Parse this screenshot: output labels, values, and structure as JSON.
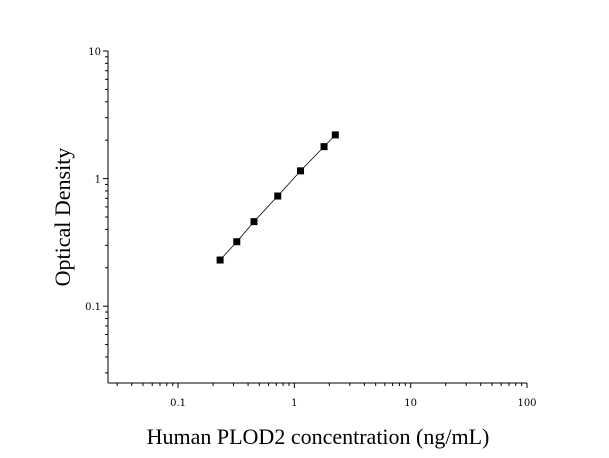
{
  "chart_data": {
    "type": "scatter",
    "title": "",
    "xlabel": "Human PLOD2 concentration (ng/mL)",
    "ylabel": "Optical Density",
    "xscale": "log",
    "yscale": "log",
    "xlim": [
      0.025,
      100
    ],
    "ylim": [
      0.025,
      10
    ],
    "x_ticks": [
      {
        "value": 0.1,
        "label": "0.1"
      },
      {
        "value": 1,
        "label": "1"
      },
      {
        "value": 10,
        "label": "10"
      },
      {
        "value": 100,
        "label": "100"
      }
    ],
    "y_ticks": [
      {
        "value": 0.1,
        "label": "0.1"
      },
      {
        "value": 1,
        "label": "1"
      },
      {
        "value": 10,
        "label": "10"
      }
    ],
    "grid": false,
    "legend": "none",
    "series": [
      {
        "points": [
          {
            "x": 0.23,
            "y": 0.23
          },
          {
            "x": 0.32,
            "y": 0.32
          },
          {
            "x": 0.45,
            "y": 0.46
          },
          {
            "x": 0.72,
            "y": 0.73
          },
          {
            "x": 1.13,
            "y": 1.15
          },
          {
            "x": 1.8,
            "y": 1.78
          },
          {
            "x": 2.25,
            "y": 2.2
          }
        ],
        "marker": "square",
        "color": "#000000",
        "fit_line": true
      }
    ]
  }
}
